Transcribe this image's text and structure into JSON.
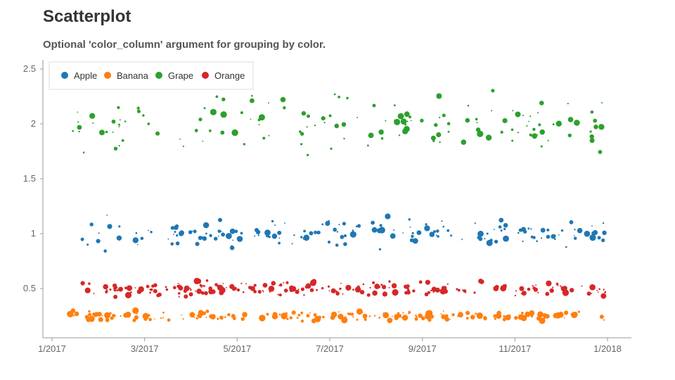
{
  "chart_data": {
    "type": "scatter",
    "title": "Scatterplot",
    "subtitle": "Optional 'color_column' argument for grouping by color.",
    "xlabel": "",
    "ylabel": "",
    "xlim": [
      0,
      12.2
    ],
    "ylim": [
      0,
      2.6
    ],
    "grid": false,
    "legend_position": "top-left",
    "x_ticks": [
      {
        "value": 0,
        "label": "1/2017"
      },
      {
        "value": 2,
        "label": "3/2017"
      },
      {
        "value": 4,
        "label": "5/2017"
      },
      {
        "value": 6,
        "label": "7/2017"
      },
      {
        "value": 8,
        "label": "9/2017"
      },
      {
        "value": 10,
        "label": "11/2017"
      },
      {
        "value": 12,
        "label": "1/2018"
      }
    ],
    "y_ticks": [
      {
        "value": 0.5,
        "label": "0.5"
      },
      {
        "value": 1,
        "label": "1"
      },
      {
        "value": 1.5,
        "label": "1.5"
      },
      {
        "value": 2,
        "label": "2"
      },
      {
        "value": 2.5,
        "label": "2.5"
      }
    ],
    "series": [
      {
        "name": "Apple",
        "color": "#1f77b4",
        "center": 1.0,
        "spread": 0.11,
        "count": 175,
        "seed": 11
      },
      {
        "name": "Banana",
        "color": "#ff7f0e",
        "center": 0.25,
        "spread": 0.04,
        "count": 210,
        "seed": 23
      },
      {
        "name": "Grape",
        "color": "#2ca02c",
        "center": 2.0,
        "spread": 0.22,
        "count": 150,
        "seed": 37
      },
      {
        "name": "Orange",
        "color": "#d62728",
        "center": 0.5,
        "spread": 0.06,
        "count": 220,
        "seed": 53
      }
    ]
  }
}
